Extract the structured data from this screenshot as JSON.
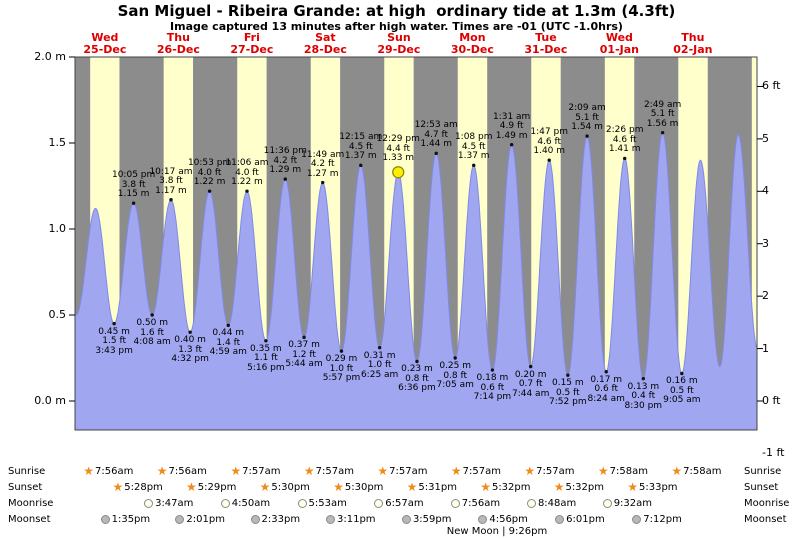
{
  "header": {
    "title": "San Miguel - Ribeira Grande: at high  ordinary tide at 1.3m (4.3ft)",
    "subtitle": "Image captured 13 minutes after high water. Times are -01 (UTC -1.0hrs)"
  },
  "chart_data": {
    "type": "area",
    "description": "Tide height curve over nine days with annotated high and low tides",
    "x_axis_days": [
      {
        "weekday": "Wed",
        "date": "25-Dec"
      },
      {
        "weekday": "Thu",
        "date": "26-Dec"
      },
      {
        "weekday": "Fri",
        "date": "27-Dec"
      },
      {
        "weekday": "Sat",
        "date": "28-Dec"
      },
      {
        "weekday": "Sun",
        "date": "29-Dec"
      },
      {
        "weekday": "Mon",
        "date": "30-Dec"
      },
      {
        "weekday": "Tue",
        "date": "31-Dec"
      },
      {
        "weekday": "Wed",
        "date": "01-Jan"
      },
      {
        "weekday": "Thu",
        "date": "02-Jan"
      }
    ],
    "y_axis_left_m": {
      "ticks": [
        {
          "label": "2.0 m",
          "m": 2.0
        },
        {
          "label": "1.5",
          "m": 1.5
        },
        {
          "label": "1.0",
          "m": 1.0
        },
        {
          "label": "0.5",
          "m": 0.5
        },
        {
          "label": "0.0 m",
          "m": 0.0
        }
      ]
    },
    "y_axis_right_ft": {
      "ticks": [
        {
          "label": "6 ft",
          "ft": 6
        },
        {
          "label": "5",
          "ft": 5
        },
        {
          "label": "4",
          "ft": 4
        },
        {
          "label": "3",
          "ft": 3
        },
        {
          "label": "2",
          "ft": 2
        },
        {
          "label": "1",
          "ft": 1
        },
        {
          "label": "0 ft",
          "ft": 0
        },
        {
          "label": "-1 ft",
          "ft": -1
        }
      ]
    },
    "ylim_m": [
      0.0,
      2.0
    ],
    "tide_events": [
      {
        "type": "low",
        "day": 0,
        "time": "3:43 pm",
        "ft_label": "1.5 ft",
        "m_label": "0.45 m"
      },
      {
        "type": "high",
        "day": 0,
        "time": "10:05 pm",
        "ft_label": "3.8 ft",
        "m_label": "1.15 m"
      },
      {
        "type": "low",
        "day": 1,
        "time": "4:08 am",
        "ft_label": "1.6 ft",
        "m_label": "0.50 m"
      },
      {
        "type": "high",
        "day": 1,
        "time": "10:17 am",
        "ft_label": "3.8 ft",
        "m_label": "1.17 m"
      },
      {
        "type": "low",
        "day": 1,
        "time": "4:32 pm",
        "ft_label": "1.3 ft",
        "m_label": "0.40 m"
      },
      {
        "type": "high",
        "day": 1,
        "time": "10:53 pm",
        "ft_label": "4.0 ft",
        "m_label": "1.22 m"
      },
      {
        "type": "low",
        "day": 2,
        "time": "4:59 am",
        "ft_label": "1.4 ft",
        "m_label": "0.44 m"
      },
      {
        "type": "high",
        "day": 2,
        "time": "11:06 am",
        "ft_label": "4.0 ft",
        "m_label": "1.22 m"
      },
      {
        "type": "low",
        "day": 2,
        "time": "5:16 pm",
        "ft_label": "1.1 ft",
        "m_label": "0.35 m"
      },
      {
        "type": "high",
        "day": 2,
        "time": "11:36 pm",
        "ft_label": "4.2 ft",
        "m_label": "1.29 m"
      },
      {
        "type": "low",
        "day": 3,
        "time": "5:44 am",
        "ft_label": "1.2 ft",
        "m_label": "0.37 m"
      },
      {
        "type": "high",
        "day": 3,
        "time": "11:49 am",
        "ft_label": "4.2 ft",
        "m_label": "1.27 m"
      },
      {
        "type": "low",
        "day": 3,
        "time": "5:57 pm",
        "ft_label": "1.0 ft",
        "m_label": "0.29 m"
      },
      {
        "type": "high",
        "day": 4,
        "time": "12:15 am",
        "ft_label": "4.5 ft",
        "m_label": "1.37 m"
      },
      {
        "type": "low",
        "day": 4,
        "time": "6:25 am",
        "ft_label": "1.0 ft",
        "m_label": "0.31 m"
      },
      {
        "type": "high",
        "day": 4,
        "time": "12:29 pm",
        "ft_label": "4.4 ft",
        "m_label": "1.33 m",
        "current": true
      },
      {
        "type": "low",
        "day": 4,
        "time": "6:36 pm",
        "ft_label": "0.8 ft",
        "m_label": "0.23 m"
      },
      {
        "type": "high",
        "day": 5,
        "time": "12:53 am",
        "ft_label": "4.7 ft",
        "m_label": "1.44 m"
      },
      {
        "type": "low",
        "day": 5,
        "time": "7:05 am",
        "ft_label": "0.8 ft",
        "m_label": "0.25 m"
      },
      {
        "type": "high",
        "day": 5,
        "time": "1:08 pm",
        "ft_label": "4.5 ft",
        "m_label": "1.37 m"
      },
      {
        "type": "low",
        "day": 5,
        "time": "7:14 pm",
        "ft_label": "0.6 ft",
        "m_label": "0.18 m"
      },
      {
        "type": "high",
        "day": 6,
        "time": "1:31 am",
        "ft_label": "4.9 ft",
        "m_label": "1.49 m"
      },
      {
        "type": "low",
        "day": 6,
        "time": "7:44 am",
        "ft_label": "0.7 ft",
        "m_label": "0.20 m"
      },
      {
        "type": "high",
        "day": 6,
        "time": "1:47 pm",
        "ft_label": "4.6 ft",
        "m_label": "1.40 m"
      },
      {
        "type": "low",
        "day": 6,
        "time": "7:52 pm",
        "ft_label": "0.5 ft",
        "m_label": "0.15 m"
      },
      {
        "type": "high",
        "day": 7,
        "time": "2:09 am",
        "ft_label": "5.1 ft",
        "m_label": "1.54 m"
      },
      {
        "type": "low",
        "day": 7,
        "time": "8:24 am",
        "ft_label": "0.6 ft",
        "m_label": "0.17 m"
      },
      {
        "type": "high",
        "day": 7,
        "time": "2:26 pm",
        "ft_label": "4.6 ft",
        "m_label": "1.41 m"
      },
      {
        "type": "low",
        "day": 7,
        "time": "8:30 pm",
        "ft_label": "0.4 ft",
        "m_label": "0.13 m"
      },
      {
        "type": "high",
        "day": 8,
        "time": "2:49 am",
        "ft_label": "5.1 ft",
        "m_label": "1.56 m"
      },
      {
        "type": "low",
        "day": 8,
        "time": "9:05 am",
        "ft_label": "0.5 ft",
        "m_label": "0.16 m"
      }
    ],
    "estimated_offchart_extremes": [
      {
        "day": -1,
        "time": "9:00 pm",
        "m": 1.1
      },
      {
        "day": 0,
        "time": "3:20 am",
        "m": 0.5
      },
      {
        "day": 0,
        "time": "9:40 am",
        "m": 1.12
      },
      {
        "day": 8,
        "time": "3:10 pm",
        "m": 1.4
      },
      {
        "day": 8,
        "time": "9:30 pm",
        "m": 0.2
      },
      {
        "day": 9,
        "time": "3:30 am",
        "m": 1.55
      },
      {
        "day": 9,
        "time": "9:50 am",
        "m": 0.3
      }
    ],
    "colors": {
      "day_band": "#ffffcc",
      "night_band": "#8c8c8c",
      "tide_fill": "#a0a6f0",
      "tide_stroke": "#7f8ae6",
      "day_label": "#dd0000",
      "marker": "#111111",
      "current_marker": "#ffee00",
      "current_marker_stroke": "#85850a"
    }
  },
  "astro": {
    "rows": [
      {
        "label": "Sunrise",
        "icon": "sunrise-star-icon",
        "events": [
          {
            "day": 0,
            "time": "7:56am"
          },
          {
            "day": 1,
            "time": "7:56am"
          },
          {
            "day": 2,
            "time": "7:57am"
          },
          {
            "day": 3,
            "time": "7:57am"
          },
          {
            "day": 4,
            "time": "7:57am"
          },
          {
            "day": 5,
            "time": "7:57am"
          },
          {
            "day": 6,
            "time": "7:57am"
          },
          {
            "day": 7,
            "time": "7:58am"
          },
          {
            "day": 8,
            "time": "7:58am"
          }
        ]
      },
      {
        "label": "Sunset",
        "icon": "sunset-star-icon",
        "events": [
          {
            "day": 0,
            "time": "5:28pm"
          },
          {
            "day": 1,
            "time": "5:29pm"
          },
          {
            "day": 2,
            "time": "5:30pm"
          },
          {
            "day": 3,
            "time": "5:30pm"
          },
          {
            "day": 4,
            "time": "5:31pm"
          },
          {
            "day": 5,
            "time": "5:32pm"
          },
          {
            "day": 6,
            "time": "5:32pm"
          },
          {
            "day": 7,
            "time": "5:33pm"
          }
        ]
      },
      {
        "label": "Moonrise",
        "icon": "moonrise-icon",
        "events": [
          {
            "day": 1,
            "time": "3:47am"
          },
          {
            "day": 2,
            "time": "4:50am"
          },
          {
            "day": 3,
            "time": "5:53am"
          },
          {
            "day": 4,
            "time": "6:57am"
          },
          {
            "day": 5,
            "time": "7:56am"
          },
          {
            "day": 6,
            "time": "8:48am"
          },
          {
            "day": 7,
            "time": "9:32am"
          }
        ]
      },
      {
        "label": "Moonset",
        "icon": "moonset-icon",
        "events": [
          {
            "day": 0,
            "time": "1:35pm"
          },
          {
            "day": 1,
            "time": "2:01pm"
          },
          {
            "day": 2,
            "time": "2:33pm"
          },
          {
            "day": 3,
            "time": "3:11pm"
          },
          {
            "day": 4,
            "time": "3:59pm"
          },
          {
            "day": 5,
            "time": "4:56pm"
          },
          {
            "day": 6,
            "time": "6:01pm"
          },
          {
            "day": 7,
            "time": "7:12pm"
          }
        ]
      }
    ],
    "footer": "New Moon | 9:26pm"
  }
}
